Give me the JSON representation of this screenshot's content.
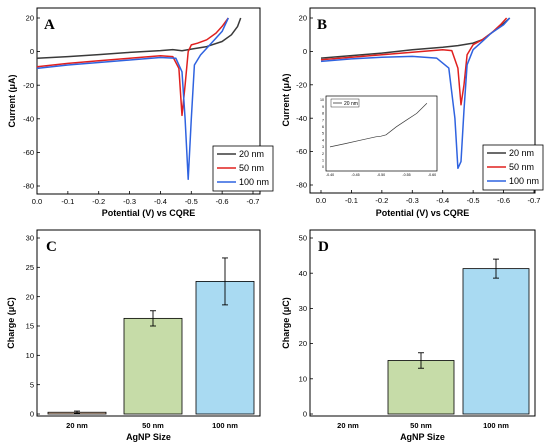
{
  "colors": {
    "20 nm": "#3a3a3a",
    "50 nm": "#e0201f",
    "100 nm": "#2f63e0",
    "bar_20": "#f2d3b7",
    "bar_50": "#c6dca8",
    "bar_100": "#a9daf2"
  },
  "chart_data": [
    {
      "panel": "A",
      "type": "line",
      "xlabel": "Potential (V) vs CQRE",
      "ylabel": "Current (μA)",
      "xlim": [
        0.0,
        -0.7
      ],
      "ylim": [
        -80,
        20
      ],
      "xticks": [
        "0.0",
        "-0.1",
        "-0.2",
        "-0.3",
        "-0.4",
        "-0.5",
        "-0.6",
        "-0.7"
      ],
      "yticks": [
        "-80",
        "-60",
        "-40",
        "-20",
        "0",
        "20"
      ],
      "legend_position": "bottom-right",
      "series": [
        {
          "name": "20 nm",
          "color": "#3a3a3a",
          "x": [
            0,
            -0.1,
            -0.2,
            -0.3,
            -0.4,
            -0.44,
            -0.47,
            -0.5,
            -0.55,
            -0.6,
            -0.63,
            -0.65,
            -0.66
          ],
          "y": [
            -4,
            -3,
            -1.8,
            -0.5,
            0.6,
            1.2,
            0.5,
            1.5,
            3,
            6,
            10,
            15,
            20
          ]
        },
        {
          "name": "50 nm",
          "color": "#e0201f",
          "x": [
            0,
            -0.1,
            -0.2,
            -0.3,
            -0.4,
            -0.44,
            -0.46,
            -0.47,
            -0.48,
            -0.49,
            -0.5,
            -0.52,
            -0.55,
            -0.58,
            -0.6,
            -0.62
          ],
          "y": [
            -9,
            -7,
            -5.5,
            -4,
            -2.5,
            -3,
            -10,
            -38,
            -20,
            0,
            4,
            5,
            7,
            11,
            15,
            20
          ]
        },
        {
          "name": "100 nm",
          "color": "#2f63e0",
          "x": [
            0,
            -0.1,
            -0.2,
            -0.3,
            -0.4,
            -0.45,
            -0.47,
            -0.48,
            -0.49,
            -0.5,
            -0.51,
            -0.53,
            -0.55,
            -0.57,
            -0.6,
            -0.62
          ],
          "y": [
            -10,
            -8,
            -6.5,
            -5,
            -3.5,
            -4,
            -12,
            -40,
            -76,
            -40,
            -8,
            -2,
            2,
            6,
            12,
            20
          ]
        }
      ]
    },
    {
      "panel": "B",
      "type": "line",
      "xlabel": "Potential (V) vs CQRE",
      "ylabel": "Current (μA)",
      "xlim": [
        0.0,
        -0.7
      ],
      "ylim": [
        -80,
        20
      ],
      "xticks": [
        "0.0",
        "-0.1",
        "-0.2",
        "-0.3",
        "-0.4",
        "-0.5",
        "-0.6",
        "-0.7"
      ],
      "yticks": [
        "-80",
        "-60",
        "-40",
        "-20",
        "0",
        "20"
      ],
      "legend_position": "bottom-right",
      "series": [
        {
          "name": "20 nm",
          "color": "#3a3a3a",
          "x": [
            0,
            -0.1,
            -0.2,
            -0.3,
            -0.4,
            -0.45,
            -0.5,
            -0.53,
            -0.56,
            -0.59,
            -0.62
          ],
          "y": [
            -4,
            -2.5,
            -1,
            1,
            2.5,
            3.5,
            5,
            7,
            11,
            15,
            20
          ]
        },
        {
          "name": "50 nm",
          "color": "#e0201f",
          "x": [
            0,
            -0.1,
            -0.2,
            -0.3,
            -0.4,
            -0.43,
            -0.45,
            -0.46,
            -0.47,
            -0.48,
            -0.5,
            -0.53,
            -0.56,
            -0.59,
            -0.61
          ],
          "y": [
            -5,
            -3.5,
            -2,
            -0.5,
            1,
            0.5,
            -10,
            -32,
            -20,
            -2,
            4,
            7,
            11,
            16,
            20
          ]
        },
        {
          "name": "100 nm",
          "color": "#2f63e0",
          "x": [
            0,
            -0.1,
            -0.2,
            -0.3,
            -0.38,
            -0.42,
            -0.44,
            -0.45,
            -0.46,
            -0.47,
            -0.48,
            -0.5,
            -0.53,
            -0.56,
            -0.6,
            -0.62
          ],
          "y": [
            -6,
            -4.5,
            -3.5,
            -3,
            -4,
            -10,
            -40,
            -70,
            -66,
            -35,
            -8,
            1,
            6,
            11,
            16,
            20
          ]
        }
      ],
      "inset": {
        "xlim": [
          -0.4,
          -0.6
        ],
        "ylim": [
          0,
          10
        ],
        "xticks": [
          "-0.40",
          "-0.45",
          "-0.50",
          "-0.55",
          "-0.60"
        ],
        "yticks": [
          "0",
          "1",
          "2",
          "3",
          "4",
          "5",
          "6",
          "7",
          "8",
          "9",
          "10"
        ],
        "series": [
          {
            "name": "20 nm",
            "color": "#3a3a3a",
            "x": [
              -0.4,
              -0.43,
              -0.46,
              -0.49,
              -0.5,
              -0.51,
              -0.53,
              -0.55,
              -0.57,
              -0.59
            ],
            "y": [
              3,
              3.5,
              4,
              4.5,
              4.6,
              4.8,
              6,
              7,
              8,
              9.5
            ]
          }
        ]
      }
    },
    {
      "panel": "C",
      "type": "bar",
      "xlabel": "AgNP Size",
      "ylabel": "Charge (μC)",
      "categories": [
        "20 nm",
        "50 nm",
        "100 nm"
      ],
      "values": [
        0.3,
        16.3,
        22.6
      ],
      "errors": [
        0.2,
        1.3,
        4.0
      ],
      "ylim": [
        0,
        30
      ],
      "yticks": [
        "0",
        "5",
        "10",
        "15",
        "20",
        "25",
        "30"
      ]
    },
    {
      "panel": "D",
      "type": "bar",
      "xlabel": "AgNP Size",
      "ylabel": "Charge (μC)",
      "categories": [
        "20 nm",
        "50 nm",
        "100 nm"
      ],
      "values": [
        0,
        15.2,
        41.3
      ],
      "errors": [
        0,
        2.2,
        2.7
      ],
      "ylim": [
        0,
        50
      ],
      "yticks": [
        "0",
        "10",
        "20",
        "30",
        "40",
        "50"
      ]
    }
  ]
}
